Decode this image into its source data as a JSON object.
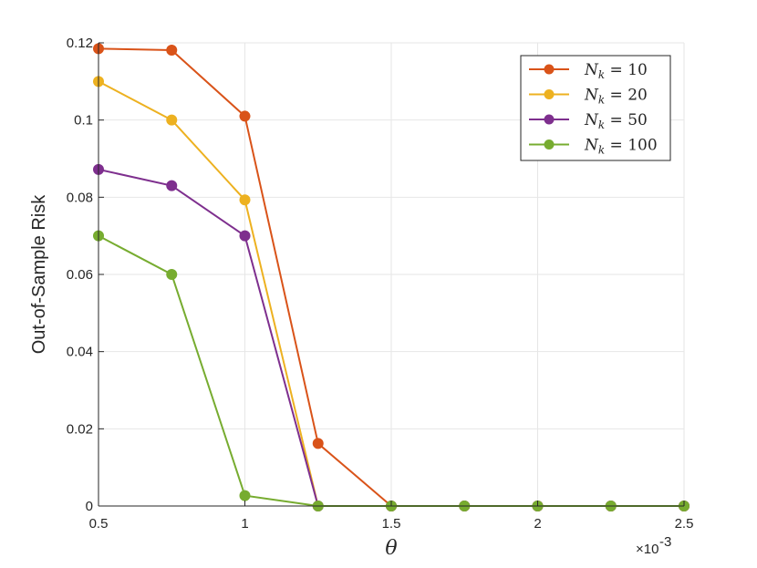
{
  "chart_data": {
    "type": "line",
    "xlabel": "θ",
    "ylabel": "Out-of-Sample Risk",
    "x_multiplier_label": "×10",
    "x_multiplier_exponent": "-3",
    "xlim": [
      0.5,
      2.5
    ],
    "ylim": [
      0,
      0.12
    ],
    "xticks": [
      "0.5",
      "1",
      "1.5",
      "2",
      "2.5"
    ],
    "yticks": [
      "0",
      "0.02",
      "0.04",
      "0.06",
      "0.08",
      "0.1",
      "0.12"
    ],
    "x": [
      0.5,
      0.75,
      1.0,
      1.25,
      1.5,
      1.75,
      2.0,
      2.25,
      2.5
    ],
    "grid": true,
    "legend_position": "top-right",
    "series": [
      {
        "name_var": "N",
        "name_sub": "k",
        "name_rest": " = 10",
        "color": "#D95319",
        "values": [
          0.1185,
          0.1181,
          0.101,
          0.0162,
          0,
          0,
          0,
          0,
          0
        ]
      },
      {
        "name_var": "N",
        "name_sub": "k",
        "name_rest": " = 20",
        "color": "#EDB120",
        "values": [
          0.11,
          0.1,
          0.0793,
          0,
          0,
          0,
          0,
          0,
          0
        ]
      },
      {
        "name_var": "N",
        "name_sub": "k",
        "name_rest": " = 50",
        "color": "#7E2F8E",
        "values": [
          0.0872,
          0.083,
          0.07,
          0,
          0,
          0,
          0,
          0,
          0
        ]
      },
      {
        "name_var": "N",
        "name_sub": "k",
        "name_rest": " = 100",
        "color": "#77AC30",
        "values": [
          0.07,
          0.06,
          0.0027,
          0,
          0,
          0,
          0,
          0,
          0
        ]
      }
    ]
  }
}
